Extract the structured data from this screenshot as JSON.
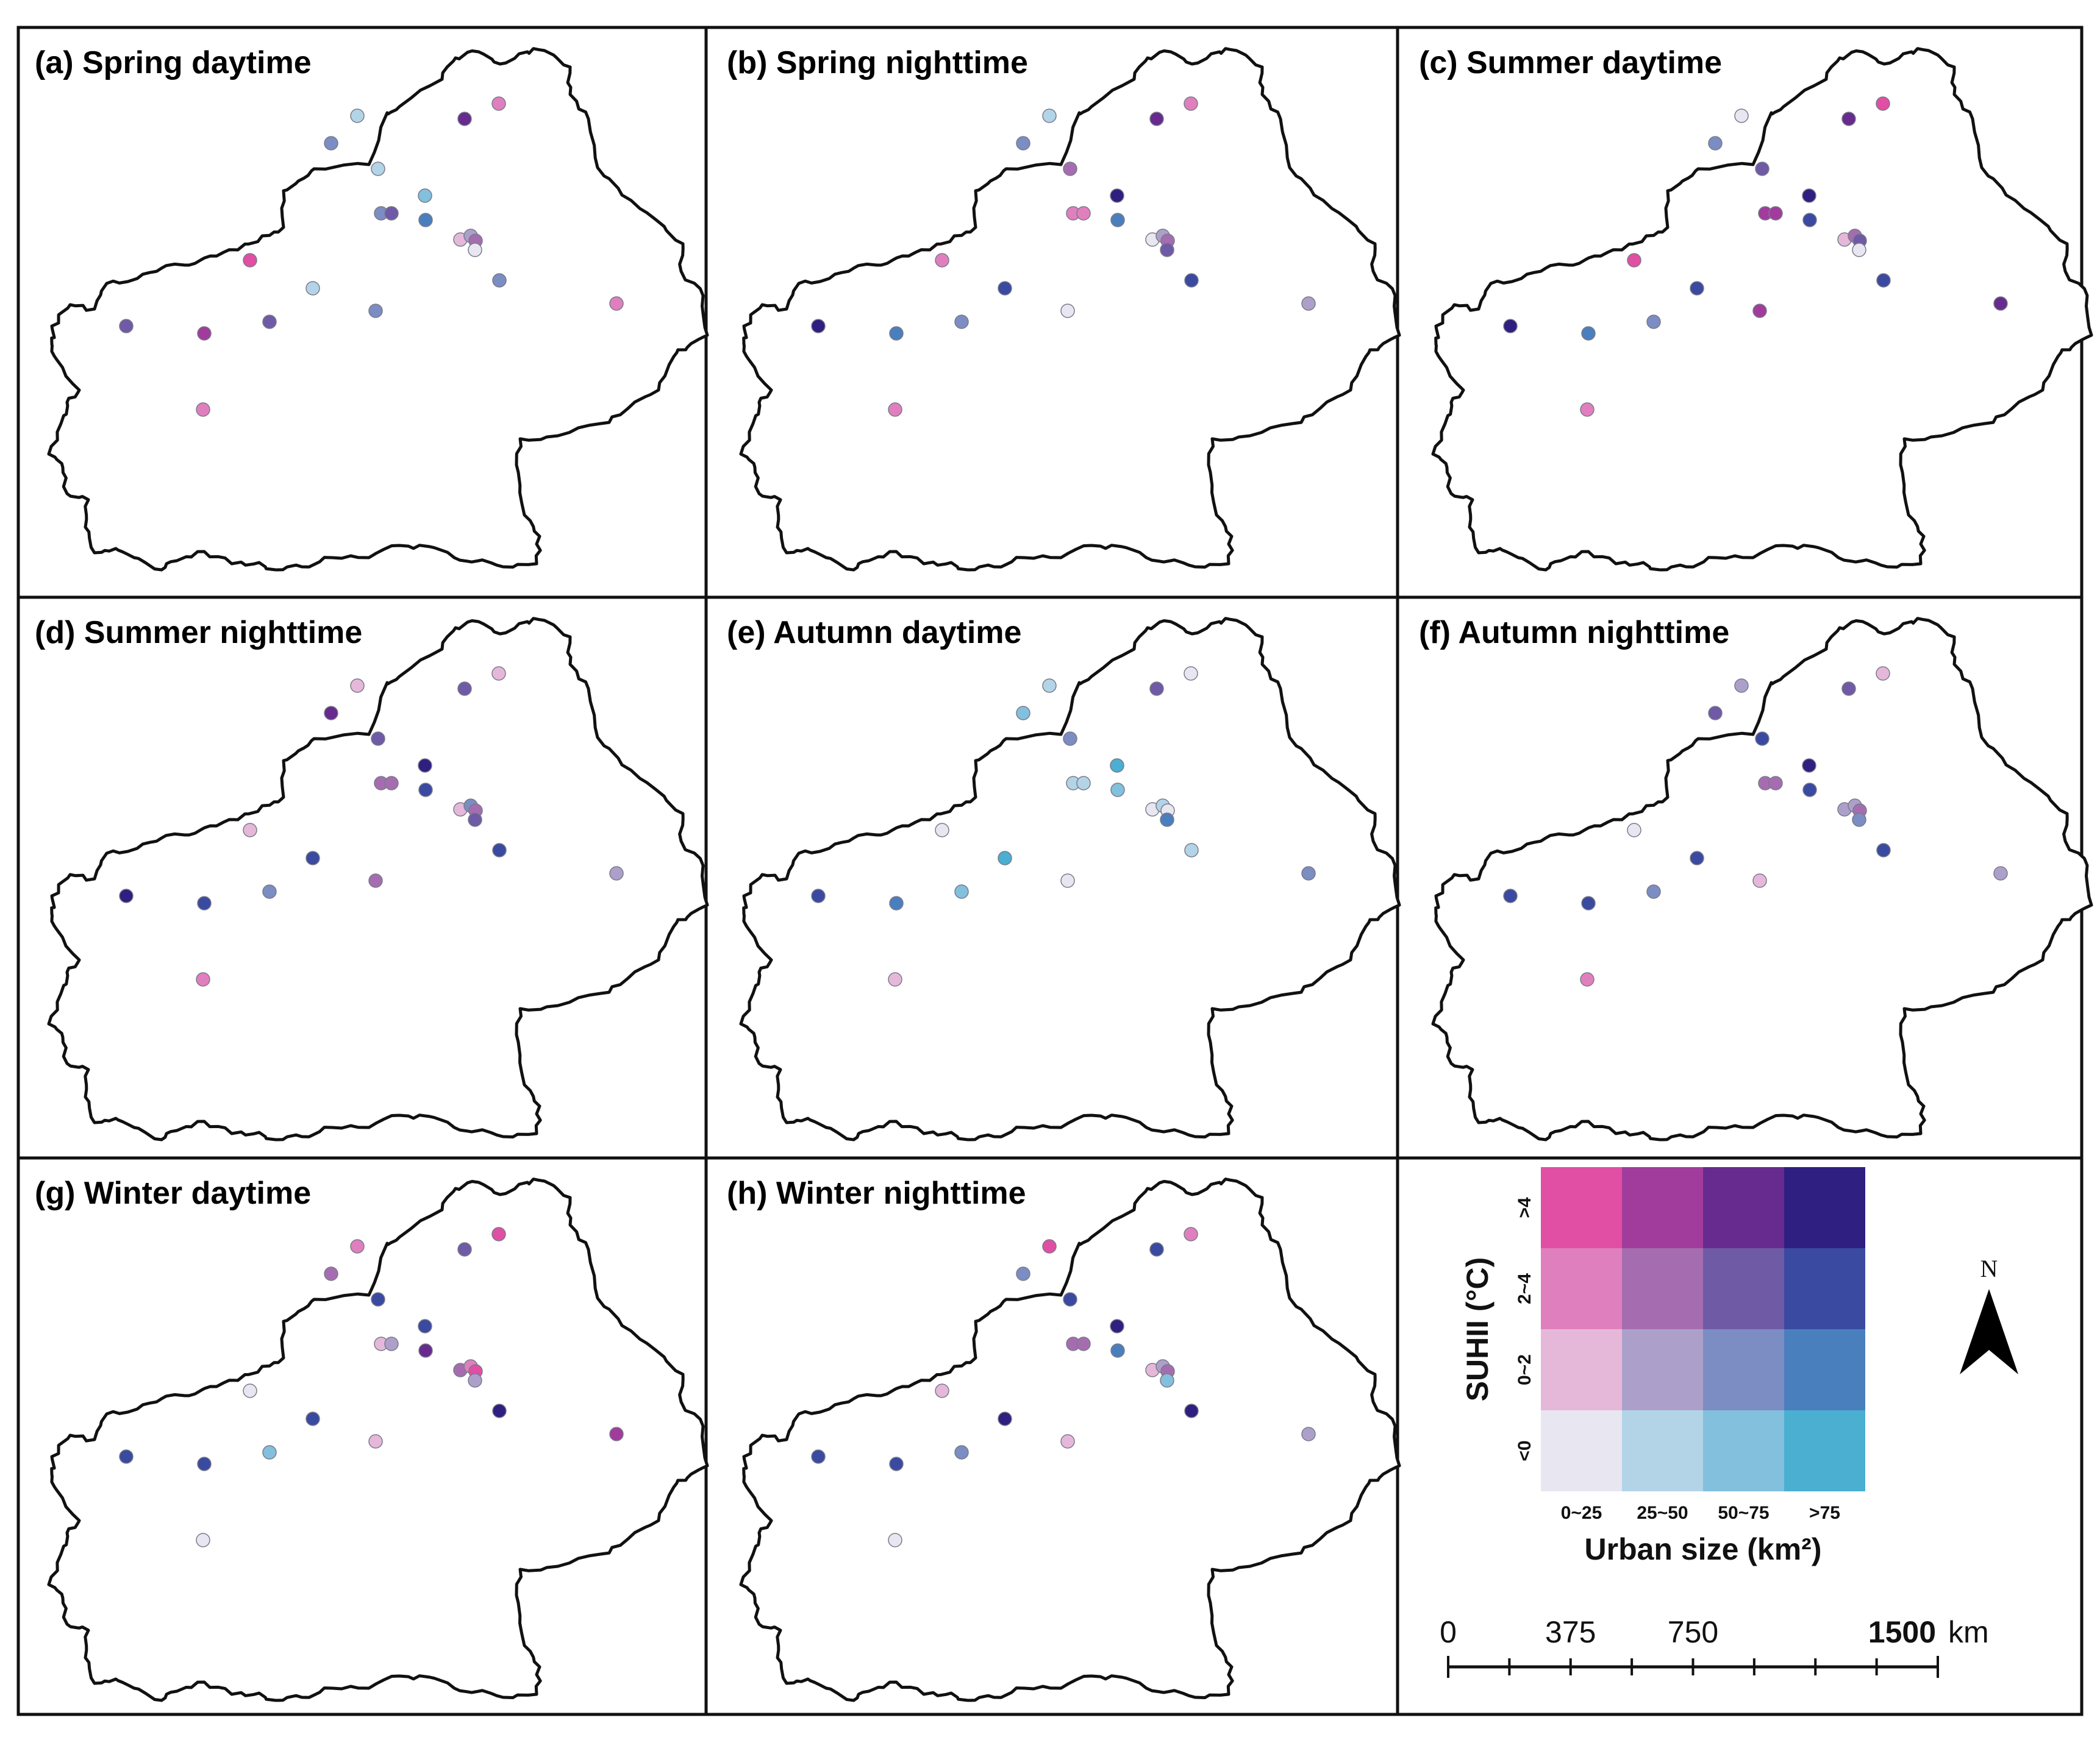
{
  "palette": {
    "rows": [
      [
        "#e8e6f1",
        "#b3d4e7",
        "#82c0de",
        "#4aafd0"
      ],
      [
        "#e5b8da",
        "#aca0cb",
        "#7b8dc2",
        "#4a7fbd"
      ],
      [
        "#e07fbe",
        "#a56db0",
        "#6f5aa6",
        "#3a4aa1"
      ],
      [
        "#e04fa3",
        "#a13c9c",
        "#672a8e",
        "#2e1f80"
      ]
    ]
  },
  "panels": [
    {
      "label": "(a) Spring daytime",
      "dots": [
        "2-0",
        "0-1",
        "3-2",
        "1-2",
        "0-1",
        "0-2",
        "1-2",
        "2-2",
        "1-3",
        "1-0",
        "1-1",
        "2-1",
        "0-0",
        "1-2",
        "3-0",
        "0-1",
        "1-2",
        "2-0",
        "2-2",
        "3-1",
        "2-2",
        "2-0"
      ]
    },
    {
      "label": "(b) Spring nighttime",
      "dots": [
        "2-0",
        "0-1",
        "3-2",
        "1-2",
        "2-1",
        "3-3",
        "2-0",
        "2-0",
        "1-3",
        "0-0",
        "1-1",
        "2-1",
        "2-2",
        "2-3",
        "2-0",
        "2-3",
        "0-0",
        "1-1",
        "3-3",
        "1-3",
        "1-2",
        "2-0"
      ]
    },
    {
      "label": "(c) Summer daytime",
      "dots": [
        "3-0",
        "0-0",
        "3-2",
        "1-2",
        "2-2",
        "3-3",
        "3-1",
        "3-1",
        "2-3",
        "1-0",
        "2-1",
        "2-2",
        "0-0",
        "2-3",
        "3-0",
        "2-3",
        "3-1",
        "3-2",
        "3-3",
        "1-3",
        "1-2",
        "2-0"
      ]
    },
    {
      "label": "(d) Summer nighttime",
      "dots": [
        "1-0",
        "1-0",
        "2-2",
        "3-2",
        "2-2",
        "3-3",
        "2-1",
        "2-1",
        "2-3",
        "1-0",
        "1-2",
        "2-1",
        "2-2",
        "2-3",
        "1-0",
        "2-3",
        "2-1",
        "1-1",
        "3-3",
        "2-3",
        "1-2",
        "2-0"
      ]
    },
    {
      "label": "(e) Autumn daytime",
      "dots": [
        "0-0",
        "0-1",
        "2-2",
        "0-2",
        "1-2",
        "0-3",
        "0-1",
        "0-1",
        "0-2",
        "0-0",
        "0-1",
        "0-0",
        "1-3",
        "0-1",
        "0-0",
        "0-3",
        "0-0",
        "1-2",
        "2-3",
        "1-3",
        "0-2",
        "1-0"
      ]
    },
    {
      "label": "(f) Autumn nighttime",
      "dots": [
        "1-0",
        "1-1",
        "2-2",
        "2-2",
        "2-3",
        "3-3",
        "2-1",
        "2-1",
        "2-3",
        "1-1",
        "1-1",
        "2-1",
        "1-2",
        "2-3",
        "0-0",
        "2-3",
        "1-0",
        "1-1",
        "2-3",
        "2-3",
        "1-2",
        "2-0"
      ]
    },
    {
      "label": "(g) Winter daytime",
      "dots": [
        "3-0",
        "2-0",
        "2-2",
        "2-1",
        "2-3",
        "2-3",
        "1-0",
        "1-1",
        "3-2",
        "2-1",
        "2-0",
        "3-0",
        "1-1",
        "3-3",
        "0-0",
        "2-3",
        "1-0",
        "3-1",
        "2-3",
        "2-3",
        "0-2",
        "0-0"
      ]
    },
    {
      "label": "(h) Winter nighttime",
      "dots": [
        "2-0",
        "3-0",
        "2-3",
        "1-2",
        "2-3",
        "3-3",
        "2-1",
        "2-1",
        "1-3",
        "1-0",
        "1-1",
        "2-1",
        "0-2",
        "3-3",
        "1-0",
        "3-3",
        "1-0",
        "1-1",
        "2-3",
        "2-3",
        "1-2",
        "0-0"
      ]
    }
  ],
  "legend": {
    "y_title": "SUHII (°C)",
    "y_ticks": [
      "<0",
      "0~2",
      "2~4",
      ">4"
    ],
    "x_title": "Urban size (km²)",
    "x_ticks": [
      "0~25",
      "25~50",
      "50~75",
      ">75"
    ]
  },
  "north_arrow": "N",
  "scale_bar": {
    "labels": [
      "0",
      "375",
      "750"
    ],
    "max_label": "1500",
    "unit": "km"
  }
}
